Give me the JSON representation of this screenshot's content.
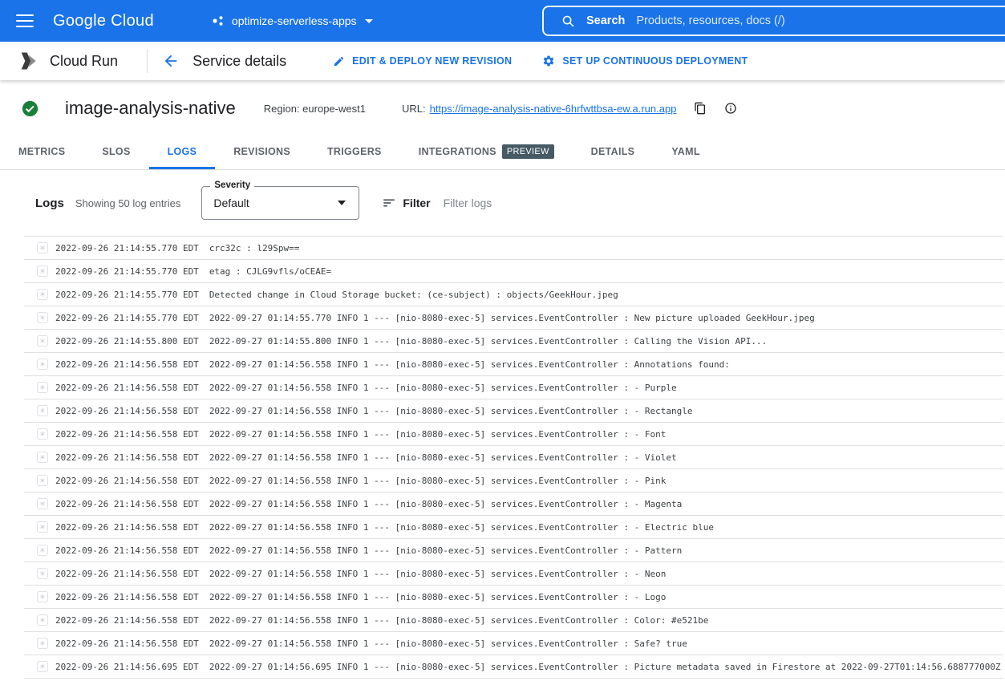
{
  "colors": {
    "brand_blue": "#1a73e8",
    "status_ok_green": "#188038",
    "preview_badge_bg": "#455a64",
    "log_text": "#3c4043",
    "row_border": "#e0e0e0"
  },
  "icons": {
    "menu-icon": "hamburger",
    "project-icon": "cloud-project-dots",
    "dropdown-arrow-icon": "caret-down",
    "search-icon": "magnifier",
    "cloud-run-icon": "cloud-run-chevrons",
    "back-arrow-icon": "arrow-left",
    "edit-icon": "pencil",
    "deploy-icon": "gear",
    "check-icon": "check-circle-green",
    "copy-icon": "content-copy",
    "info-icon": "info-outline",
    "filter-icon": "sort-lines",
    "select-arrow-icon": "caret-down",
    "expand-icon": "asterisk-box"
  },
  "topbar": {
    "logo": "Google Cloud",
    "project": "optimize-serverless-apps",
    "search_label": "Search",
    "search_placeholder": "Products, resources, docs (/)"
  },
  "header": {
    "product": "Cloud Run",
    "page_title": "Service details",
    "action_edit": "EDIT & DEPLOY NEW REVISION",
    "action_setup": "SET UP CONTINUOUS DEPLOYMENT"
  },
  "service": {
    "name": "image-analysis-native",
    "region_label": "Region: europe-west1",
    "url_label": "URL:",
    "url": "https://image-analysis-native-6hrfwttbsa-ew.a.run.app"
  },
  "tabs": [
    {
      "label": "METRICS"
    },
    {
      "label": "SLOS"
    },
    {
      "label": "LOGS",
      "active": true
    },
    {
      "label": "REVISIONS"
    },
    {
      "label": "TRIGGERS"
    },
    {
      "label": "INTEGRATIONS",
      "badge": "PREVIEW"
    },
    {
      "label": "DETAILS"
    },
    {
      "label": "YAML"
    }
  ],
  "logs_toolbar": {
    "title": "Logs",
    "subtitle": "Showing 50 log entries",
    "severity_label": "Severity",
    "severity_value": "Default",
    "filter_label": "Filter",
    "filter_placeholder": "Filter logs"
  },
  "log_entries": [
    {
      "time": "2022-09-26 21:14:55.770 EDT",
      "message": "crc32c : l29Spw=="
    },
    {
      "time": "2022-09-26 21:14:55.770 EDT",
      "message": "etag : CJLG9vfls/oCEAE="
    },
    {
      "time": "2022-09-26 21:14:55.770 EDT",
      "message": "Detected change in Cloud Storage bucket: (ce-subject) : objects/GeekHour.jpeg"
    },
    {
      "time": "2022-09-26 21:14:55.770 EDT",
      "message": "2022-09-27 01:14:55.770 INFO 1 --- [nio-8080-exec-5] services.EventController : New picture uploaded GeekHour.jpeg"
    },
    {
      "time": "2022-09-26 21:14:55.800 EDT",
      "message": "2022-09-27 01:14:55.800 INFO 1 --- [nio-8080-exec-5] services.EventController : Calling the Vision API..."
    },
    {
      "time": "2022-09-26 21:14:56.558 EDT",
      "message": "2022-09-27 01:14:56.558 INFO 1 --- [nio-8080-exec-5] services.EventController : Annotations found:"
    },
    {
      "time": "2022-09-26 21:14:56.558 EDT",
      "message": "2022-09-27 01:14:56.558 INFO 1 --- [nio-8080-exec-5] services.EventController : - Purple"
    },
    {
      "time": "2022-09-26 21:14:56.558 EDT",
      "message": "2022-09-27 01:14:56.558 INFO 1 --- [nio-8080-exec-5] services.EventController : - Rectangle"
    },
    {
      "time": "2022-09-26 21:14:56.558 EDT",
      "message": "2022-09-27 01:14:56.558 INFO 1 --- [nio-8080-exec-5] services.EventController : - Font"
    },
    {
      "time": "2022-09-26 21:14:56.558 EDT",
      "message": "2022-09-27 01:14:56.558 INFO 1 --- [nio-8080-exec-5] services.EventController : - Violet"
    },
    {
      "time": "2022-09-26 21:14:56.558 EDT",
      "message": "2022-09-27 01:14:56.558 INFO 1 --- [nio-8080-exec-5] services.EventController : - Pink"
    },
    {
      "time": "2022-09-26 21:14:56.558 EDT",
      "message": "2022-09-27 01:14:56.558 INFO 1 --- [nio-8080-exec-5] services.EventController : - Magenta"
    },
    {
      "time": "2022-09-26 21:14:56.558 EDT",
      "message": "2022-09-27 01:14:56.558 INFO 1 --- [nio-8080-exec-5] services.EventController : - Electric blue"
    },
    {
      "time": "2022-09-26 21:14:56.558 EDT",
      "message": "2022-09-27 01:14:56.558 INFO 1 --- [nio-8080-exec-5] services.EventController : - Pattern"
    },
    {
      "time": "2022-09-26 21:14:56.558 EDT",
      "message": "2022-09-27 01:14:56.558 INFO 1 --- [nio-8080-exec-5] services.EventController : - Neon"
    },
    {
      "time": "2022-09-26 21:14:56.558 EDT",
      "message": "2022-09-27 01:14:56.558 INFO 1 --- [nio-8080-exec-5] services.EventController : - Logo"
    },
    {
      "time": "2022-09-26 21:14:56.558 EDT",
      "message": "2022-09-27 01:14:56.558 INFO 1 --- [nio-8080-exec-5] services.EventController : Color: #e521be"
    },
    {
      "time": "2022-09-26 21:14:56.558 EDT",
      "message": "2022-09-27 01:14:56.558 INFO 1 --- [nio-8080-exec-5] services.EventController : Safe? true"
    },
    {
      "time": "2022-09-26 21:14:56.695 EDT",
      "message": "2022-09-27 01:14:56.695 INFO 1 --- [nio-8080-exec-5] services.EventController : Picture metadata saved in Firestore at 2022-09-27T01:14:56.688777000Z"
    }
  ]
}
